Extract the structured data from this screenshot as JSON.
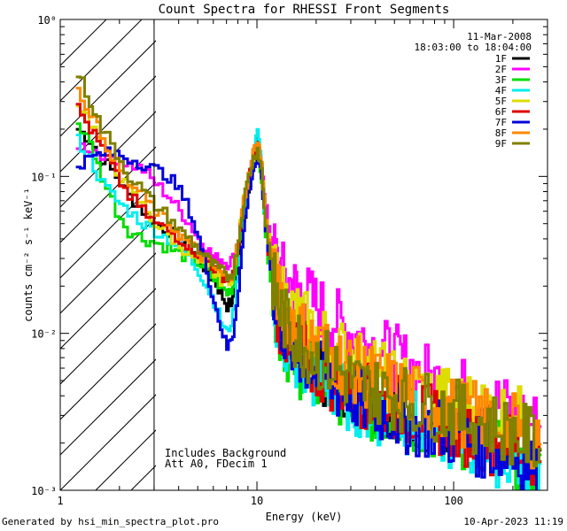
{
  "chart_data": {
    "type": "line",
    "title": "Count Spectra for RHESSI Front Segments",
    "xlabel": "Energy (keV)",
    "ylabel": "counts cm⁻² s⁻¹ keV⁻¹",
    "xscale": "log",
    "yscale": "log",
    "xlim": [
      1,
      300
    ],
    "ylim": [
      0.001,
      1
    ],
    "x_tick_labels": [
      "1",
      "10",
      "100"
    ],
    "y_tick_labels": [
      "10⁻³",
      "10⁻²",
      "10⁻¹",
      "10⁰"
    ],
    "date": "11-Mar-2008",
    "time_range": "18:03:00 to 18:04:00",
    "annotations": [
      "Includes Background",
      "Att A0, FDecim 1"
    ],
    "hatched_region_max_kev": 3.0,
    "legend_position": "top-right",
    "series": [
      {
        "name": "1F",
        "color": "#000000",
        "x": [
          1.2,
          1.4,
          1.6,
          1.9,
          2.2,
          2.6,
          3,
          3.5,
          4,
          4.5,
          5,
          5.5,
          6,
          6.5,
          7,
          7.5,
          8,
          8.5,
          9,
          9.5,
          10,
          10.5,
          11,
          12,
          13,
          15,
          17,
          20,
          25,
          30,
          35,
          40,
          50,
          60,
          80,
          100,
          130,
          170,
          220,
          280
        ],
        "y": [
          0.2,
          0.17,
          0.13,
          0.1,
          0.075,
          0.06,
          0.05,
          0.045,
          0.04,
          0.035,
          0.03,
          0.025,
          0.022,
          0.018,
          0.015,
          0.016,
          0.03,
          0.05,
          0.08,
          0.13,
          0.18,
          0.12,
          0.05,
          0.02,
          0.012,
          0.009,
          0.008,
          0.006,
          0.005,
          0.0045,
          0.004,
          0.0038,
          0.0035,
          0.003,
          0.0028,
          0.0025,
          0.0022,
          0.002,
          0.0018,
          0.0015
        ]
      },
      {
        "name": "2F",
        "color": "#ff00ff",
        "x": [
          1.2,
          1.4,
          1.6,
          1.9,
          2.2,
          2.6,
          3,
          3.5,
          4,
          4.5,
          5,
          5.5,
          6,
          6.5,
          7,
          7.5,
          8,
          8.5,
          9,
          9.5,
          10,
          10.5,
          11,
          12,
          13,
          15,
          17,
          20,
          25,
          30,
          35,
          40,
          50,
          60,
          80,
          100,
          130,
          170,
          220,
          280
        ],
        "y": [
          0.16,
          0.15,
          0.14,
          0.13,
          0.12,
          0.11,
          0.09,
          0.075,
          0.06,
          0.05,
          0.04,
          0.035,
          0.03,
          0.03,
          0.028,
          0.03,
          0.04,
          0.06,
          0.09,
          0.13,
          0.16,
          0.12,
          0.06,
          0.035,
          0.025,
          0.02,
          0.018,
          0.015,
          0.012,
          0.01,
          0.009,
          0.008,
          0.007,
          0.006,
          0.005,
          0.0045,
          0.004,
          0.0035,
          0.003,
          0.0025
        ]
      },
      {
        "name": "3F",
        "color": "#00dd00",
        "x": [
          1.2,
          1.4,
          1.6,
          1.9,
          2.2,
          2.6,
          3,
          3.5,
          4,
          4.5,
          5,
          5.5,
          6,
          6.5,
          7,
          7.5,
          8,
          8.5,
          9,
          9.5,
          10,
          10.5,
          11,
          12,
          13,
          15,
          17,
          20,
          25,
          30,
          35,
          40,
          50,
          60,
          80,
          100,
          130,
          170,
          220,
          280
        ],
        "y": [
          0.22,
          0.16,
          0.1,
          0.06,
          0.045,
          0.04,
          0.038,
          0.035,
          0.032,
          0.03,
          0.028,
          0.025,
          0.022,
          0.02,
          0.018,
          0.02,
          0.035,
          0.06,
          0.09,
          0.12,
          0.15,
          0.1,
          0.04,
          0.018,
          0.01,
          0.007,
          0.006,
          0.005,
          0.0045,
          0.004,
          0.0035,
          0.0032,
          0.003,
          0.0028,
          0.0025,
          0.0022,
          0.002,
          0.0018,
          0.0016,
          0.0014
        ]
      },
      {
        "name": "4F",
        "color": "#00eeee",
        "x": [
          1.2,
          1.4,
          1.6,
          1.9,
          2.2,
          2.6,
          3,
          3.5,
          4,
          4.5,
          5,
          5.5,
          6,
          6.5,
          7,
          7.5,
          8,
          8.5,
          9,
          9.5,
          10,
          10.5,
          11,
          12,
          13,
          15,
          17,
          20,
          25,
          30,
          35,
          40,
          50,
          60,
          80,
          100,
          130,
          170,
          220,
          280
        ],
        "y": [
          0.17,
          0.13,
          0.09,
          0.07,
          0.06,
          0.05,
          0.045,
          0.04,
          0.035,
          0.03,
          0.025,
          0.02,
          0.016,
          0.012,
          0.01,
          0.013,
          0.025,
          0.05,
          0.09,
          0.14,
          0.19,
          0.12,
          0.045,
          0.018,
          0.01,
          0.007,
          0.006,
          0.005,
          0.0042,
          0.0038,
          0.0034,
          0.0031,
          0.0029,
          0.0027,
          0.0024,
          0.0021,
          0.0019,
          0.0017,
          0.0015,
          0.0013
        ]
      },
      {
        "name": "5F",
        "color": "#dddd00",
        "x": [
          1.2,
          1.4,
          1.6,
          1.9,
          2.2,
          2.6,
          3,
          3.5,
          4,
          4.5,
          5,
          5.5,
          6,
          6.5,
          7,
          7.5,
          8,
          8.5,
          9,
          9.5,
          10,
          10.5,
          11,
          12,
          13,
          15,
          17,
          20,
          25,
          30,
          35,
          40,
          50,
          60,
          80,
          100,
          130,
          170,
          220,
          280
        ],
        "y": [
          0.3,
          0.22,
          0.16,
          0.11,
          0.08,
          0.065,
          0.05,
          0.042,
          0.036,
          0.032,
          0.028,
          0.026,
          0.024,
          0.022,
          0.021,
          0.024,
          0.04,
          0.07,
          0.1,
          0.13,
          0.15,
          0.11,
          0.05,
          0.025,
          0.018,
          0.014,
          0.012,
          0.01,
          0.008,
          0.007,
          0.006,
          0.0055,
          0.005,
          0.0045,
          0.004,
          0.0037,
          0.0034,
          0.0031,
          0.0028,
          0.0025
        ]
      },
      {
        "name": "6F",
        "color": "#dd0000",
        "x": [
          1.2,
          1.4,
          1.6,
          1.9,
          2.2,
          2.6,
          3,
          3.5,
          4,
          4.5,
          5,
          5.5,
          6,
          6.5,
          7,
          7.5,
          8,
          8.5,
          9,
          9.5,
          10,
          10.5,
          11,
          12,
          13,
          15,
          17,
          20,
          25,
          30,
          35,
          40,
          50,
          60,
          80,
          100,
          130,
          170,
          220,
          280
        ],
        "y": [
          0.27,
          0.2,
          0.15,
          0.1,
          0.075,
          0.06,
          0.05,
          0.045,
          0.04,
          0.036,
          0.032,
          0.03,
          0.026,
          0.024,
          0.022,
          0.024,
          0.038,
          0.065,
          0.095,
          0.13,
          0.16,
          0.11,
          0.045,
          0.02,
          0.012,
          0.008,
          0.007,
          0.006,
          0.005,
          0.0045,
          0.004,
          0.0037,
          0.0034,
          0.0031,
          0.0028,
          0.0025,
          0.0022,
          0.002,
          0.0018,
          0.0016
        ]
      },
      {
        "name": "7F",
        "color": "#0000dd",
        "x": [
          1.2,
          1.4,
          1.6,
          1.9,
          2.2,
          2.6,
          3,
          3.5,
          4,
          4.5,
          5,
          5.5,
          6,
          6.5,
          7,
          7.5,
          8,
          8.5,
          9,
          9.5,
          10,
          10.5,
          11,
          12,
          13,
          15,
          17,
          20,
          25,
          30,
          35,
          40,
          50,
          60,
          80,
          100,
          130,
          170,
          220,
          280
        ],
        "y": [
          0.12,
          0.13,
          0.14,
          0.14,
          0.13,
          0.12,
          0.11,
          0.1,
          0.08,
          0.06,
          0.04,
          0.025,
          0.016,
          0.011,
          0.008,
          0.01,
          0.02,
          0.045,
          0.08,
          0.11,
          0.13,
          0.1,
          0.045,
          0.02,
          0.012,
          0.008,
          0.007,
          0.0055,
          0.0045,
          0.004,
          0.0036,
          0.0033,
          0.003,
          0.0027,
          0.0025,
          0.0022,
          0.002,
          0.0018,
          0.0016,
          0.0014
        ]
      },
      {
        "name": "8F",
        "color": "#ff8800",
        "x": [
          1.2,
          1.4,
          1.6,
          1.9,
          2.2,
          2.6,
          3,
          3.5,
          4,
          4.5,
          5,
          5.5,
          6,
          6.5,
          7,
          7.5,
          8,
          8.5,
          9,
          9.5,
          10,
          10.5,
          11,
          12,
          13,
          15,
          17,
          20,
          25,
          30,
          35,
          40,
          50,
          60,
          80,
          100,
          130,
          170,
          220,
          280
        ],
        "y": [
          0.35,
          0.26,
          0.18,
          0.12,
          0.09,
          0.075,
          0.06,
          0.05,
          0.043,
          0.037,
          0.032,
          0.029,
          0.026,
          0.024,
          0.022,
          0.025,
          0.04,
          0.07,
          0.1,
          0.14,
          0.17,
          0.12,
          0.055,
          0.025,
          0.016,
          0.012,
          0.01,
          0.0085,
          0.007,
          0.006,
          0.0055,
          0.005,
          0.0045,
          0.004,
          0.0036,
          0.0032,
          0.003,
          0.0027,
          0.0024,
          0.0022
        ]
      },
      {
        "name": "9F",
        "color": "#808000",
        "x": [
          1.2,
          1.4,
          1.6,
          1.9,
          2.2,
          2.6,
          3,
          3.5,
          4,
          4.5,
          5,
          5.5,
          6,
          6.5,
          7,
          7.5,
          8,
          8.5,
          9,
          9.5,
          10,
          10.5,
          11,
          12,
          13,
          15,
          17,
          20,
          25,
          30,
          35,
          40,
          50,
          60,
          80,
          100,
          130,
          170,
          220,
          280
        ],
        "y": [
          0.45,
          0.3,
          0.2,
          0.14,
          0.1,
          0.08,
          0.065,
          0.055,
          0.045,
          0.04,
          0.034,
          0.03,
          0.027,
          0.025,
          0.023,
          0.025,
          0.04,
          0.07,
          0.1,
          0.13,
          0.15,
          0.11,
          0.05,
          0.022,
          0.014,
          0.01,
          0.0085,
          0.007,
          0.006,
          0.005,
          0.0045,
          0.0042,
          0.004,
          0.0037,
          0.0034,
          0.0031,
          0.0028,
          0.0025,
          0.0022,
          0.002
        ]
      }
    ]
  },
  "footer": {
    "generated_by": "Generated by hsi_min_spectra_plot.pro",
    "timestamp": "10-Apr-2023 11:19"
  }
}
